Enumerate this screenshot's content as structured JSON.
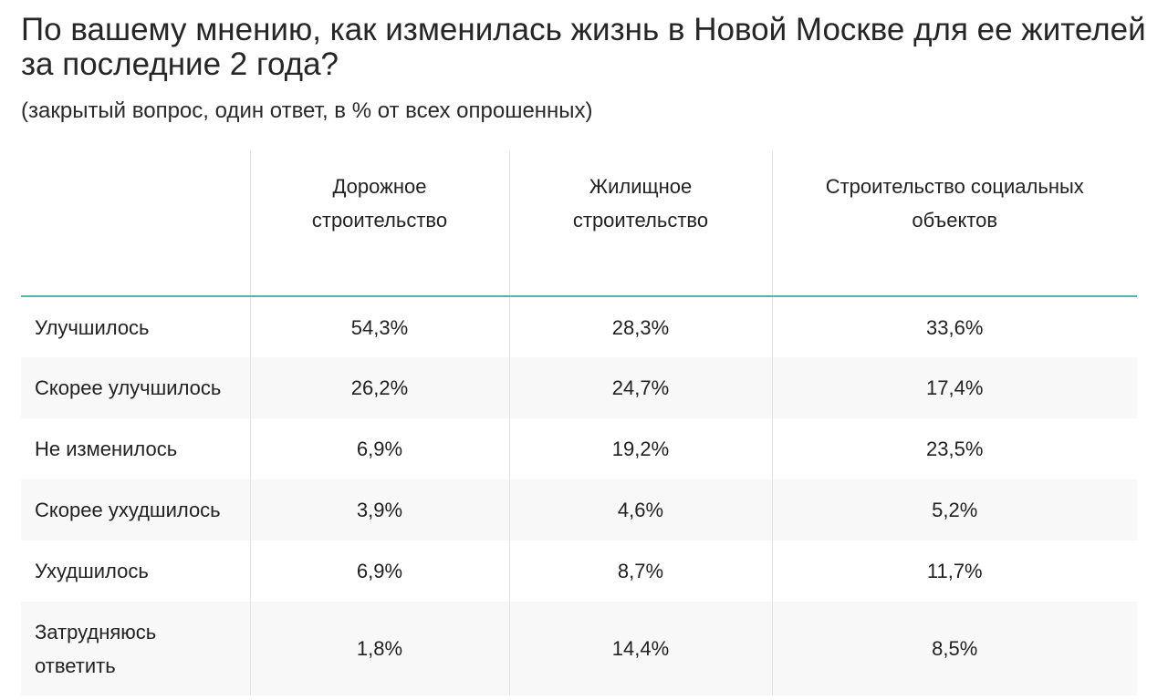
{
  "header": {
    "title": "По вашему мнению, как изменилась жизнь в Новой Москве для ее жителей за последние 2 года?",
    "subtitle": "(закрытый вопрос, один ответ, в % от всех опрошенных)"
  },
  "table": {
    "columns": [
      "",
      "Дорожное строительство",
      "Жилищное строительство",
      "Строительство социальных объектов"
    ],
    "rows": [
      {
        "label": "Улучшилось",
        "values": [
          "54,3%",
          "28,3%",
          "33,6%"
        ]
      },
      {
        "label": "Скорее улучшилось",
        "values": [
          "26,2%",
          "24,7%",
          "17,4%"
        ]
      },
      {
        "label": "Не изменилось",
        "values": [
          "6,9%",
          "19,2%",
          "23,5%"
        ]
      },
      {
        "label": "Скорее ухудшилось",
        "values": [
          "3,9%",
          "4,6%",
          "5,2%"
        ]
      },
      {
        "label": "Ухудшилось",
        "values": [
          "6,9%",
          "8,7%",
          "11,7%"
        ]
      },
      {
        "label": "Затрудняюсь ответить",
        "values": [
          "1,8%",
          "14,4%",
          "8,5%"
        ]
      }
    ]
  },
  "colors": {
    "header_rule": "#4fb7ab",
    "shaded_row": "#f8f8f8",
    "divider": "#e3e3e3",
    "text": "#222222"
  }
}
